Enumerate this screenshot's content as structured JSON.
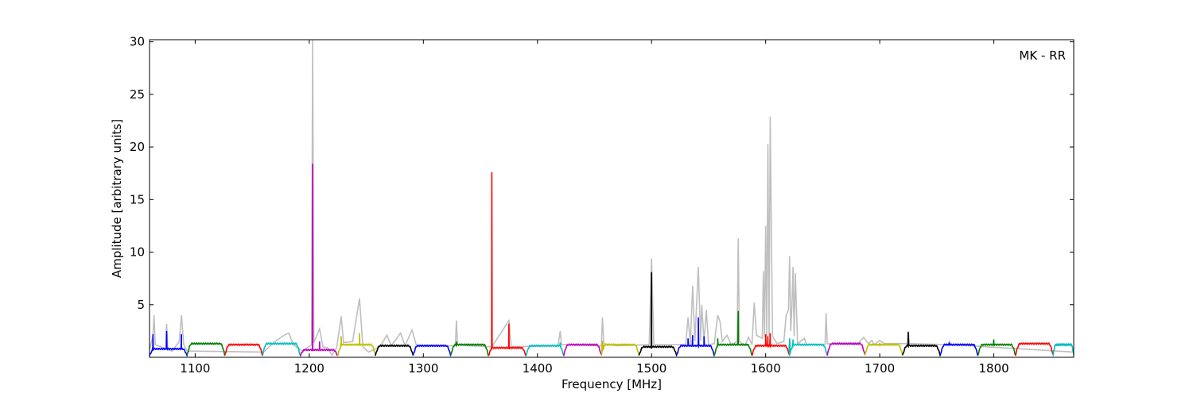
{
  "chart_data": {
    "type": "line",
    "title": "",
    "annotation": "MK - RR",
    "xlabel": "Frequency [MHz]",
    "ylabel": "Amplitude [arbitrary units]",
    "xlim": [
      1060,
      1870
    ],
    "ylim": [
      0,
      30.2
    ],
    "xticks": [
      1100,
      1200,
      1300,
      1400,
      1500,
      1600,
      1700,
      1800
    ],
    "yticks": [
      5,
      10,
      15,
      20,
      25,
      30
    ],
    "grid": false,
    "background_series": {
      "color": "#bfbfbf",
      "points": [
        [
          1060,
          0.7
        ],
        [
          1063,
          2.0
        ],
        [
          1064,
          4.0
        ],
        [
          1065,
          1.2
        ],
        [
          1070,
          1.0
        ],
        [
          1074,
          0.8
        ],
        [
          1075,
          3.2
        ],
        [
          1076,
          0.7
        ],
        [
          1080,
          0.6
        ],
        [
          1086,
          1.5
        ],
        [
          1088,
          4.0
        ],
        [
          1090,
          1.2
        ],
        [
          1093,
          0.6
        ],
        [
          1160,
          0.5
        ],
        [
          1170,
          1.5
        ],
        [
          1178,
          2.1
        ],
        [
          1182,
          2.3
        ],
        [
          1186,
          1.2
        ],
        [
          1194,
          0.6
        ],
        [
          1202,
          1.2
        ],
        [
          1203,
          30.2
        ],
        [
          1204,
          1.4
        ],
        [
          1209,
          2.7
        ],
        [
          1212,
          1.0
        ],
        [
          1216,
          0.9
        ],
        [
          1220,
          0.2
        ],
        [
          1224,
          0.9
        ],
        [
          1228,
          3.9
        ],
        [
          1230,
          1.4
        ],
        [
          1238,
          1.5
        ],
        [
          1244,
          5.6
        ],
        [
          1247,
          1.0
        ],
        [
          1252,
          0.5
        ],
        [
          1262,
          1.0
        ],
        [
          1268,
          2.1
        ],
        [
          1272,
          1.1
        ],
        [
          1280,
          2.3
        ],
        [
          1284,
          1.1
        ],
        [
          1290,
          2.6
        ],
        [
          1294,
          1.1
        ],
        [
          1300,
          1.1
        ],
        [
          1328,
          1.1
        ],
        [
          1329,
          3.5
        ],
        [
          1330,
          1.2
        ],
        [
          1340,
          1.1
        ],
        [
          1360,
          1.0
        ],
        [
          1375,
          3.5
        ],
        [
          1377,
          1.0
        ],
        [
          1418,
          1.1
        ],
        [
          1420,
          2.5
        ],
        [
          1421,
          1.2
        ],
        [
          1456,
          1.1
        ],
        [
          1457,
          3.8
        ],
        [
          1458,
          1.3
        ],
        [
          1470,
          1.1
        ],
        [
          1498,
          1.2
        ],
        [
          1500,
          9.4
        ],
        [
          1502,
          1.2
        ],
        [
          1520,
          1.2
        ],
        [
          1530,
          1.2
        ],
        [
          1532,
          3.8
        ],
        [
          1534,
          1.3
        ],
        [
          1536,
          6.8
        ],
        [
          1538,
          1.5
        ],
        [
          1541,
          8.6
        ],
        [
          1543,
          1.6
        ],
        [
          1544,
          5.0
        ],
        [
          1546,
          1.5
        ],
        [
          1548,
          4.5
        ],
        [
          1550,
          1.2
        ],
        [
          1555,
          1.3
        ],
        [
          1558,
          4.0
        ],
        [
          1560,
          3.4
        ],
        [
          1562,
          1.5
        ],
        [
          1566,
          2.1
        ],
        [
          1570,
          1.2
        ],
        [
          1575,
          1.5
        ],
        [
          1576,
          11.3
        ],
        [
          1577,
          1.5
        ],
        [
          1582,
          1.1
        ],
        [
          1585,
          1.9
        ],
        [
          1588,
          1.2
        ],
        [
          1590,
          5.2
        ],
        [
          1592,
          2.1
        ],
        [
          1597,
          1.8
        ],
        [
          1598,
          8.2
        ],
        [
          1599,
          1.9
        ],
        [
          1600,
          12.5
        ],
        [
          1601,
          1.9
        ],
        [
          1602,
          20.3
        ],
        [
          1603,
          2.0
        ],
        [
          1604,
          22.9
        ],
        [
          1606,
          2.0
        ],
        [
          1610,
          1.3
        ],
        [
          1616,
          1.5
        ],
        [
          1618,
          4.0
        ],
        [
          1620,
          4.5
        ],
        [
          1621,
          9.6
        ],
        [
          1622,
          2.5
        ],
        [
          1623,
          4.8
        ],
        [
          1624,
          8.6
        ],
        [
          1625,
          2.0
        ],
        [
          1626,
          8.0
        ],
        [
          1628,
          1.3
        ],
        [
          1634,
          1.8
        ],
        [
          1636,
          1.2
        ],
        [
          1652,
          1.2
        ],
        [
          1653,
          4.2
        ],
        [
          1654,
          1.3
        ],
        [
          1680,
          1.2
        ],
        [
          1686,
          1.9
        ],
        [
          1690,
          1.3
        ],
        [
          1693,
          1.6
        ],
        [
          1695,
          1.2
        ],
        [
          1700,
          1.6
        ],
        [
          1704,
          1.3
        ],
        [
          1724,
          1.3
        ],
        [
          1725,
          2.5
        ],
        [
          1726,
          1.3
        ],
        [
          1760,
          1.2
        ],
        [
          1761,
          1.5
        ],
        [
          1762,
          1.2
        ],
        [
          1870,
          0.5
        ]
      ]
    },
    "series": [
      {
        "color": "#0000ff",
        "x_range": [
          1060,
          1093
        ],
        "base": 0.8,
        "spikes": [
          [
            1063,
            2.2
          ],
          [
            1075,
            2.5
          ],
          [
            1088,
            2.2
          ]
        ],
        "dip_start": false
      },
      {
        "color": "#008000",
        "x_range": [
          1093,
          1126
        ],
        "base": 1.3,
        "spikes": []
      },
      {
        "color": "#ff0000",
        "x_range": [
          1126,
          1159
        ],
        "base": 1.2,
        "spikes": []
      },
      {
        "color": "#00bfbf",
        "x_range": [
          1159,
          1192
        ],
        "base": 1.3,
        "spikes": []
      },
      {
        "color": "#bf00bf",
        "x_range": [
          1192,
          1225
        ],
        "base": 0.7,
        "spikes": [
          [
            1203,
            18.4
          ],
          [
            1209,
            1.5
          ]
        ]
      },
      {
        "color": "#bfbf00",
        "x_range": [
          1225,
          1258
        ],
        "base": 1.2,
        "spikes": [
          [
            1228,
            2.0
          ],
          [
            1244,
            2.3
          ]
        ]
      },
      {
        "color": "#000000",
        "x_range": [
          1258,
          1291
        ],
        "base": 1.1,
        "spikes": []
      },
      {
        "color": "#0000ff",
        "x_range": [
          1291,
          1324
        ],
        "base": 1.1,
        "spikes": []
      },
      {
        "color": "#008000",
        "x_range": [
          1324,
          1357
        ],
        "base": 1.2,
        "spikes": [
          [
            1329,
            1.5
          ]
        ]
      },
      {
        "color": "#ff0000",
        "x_range": [
          1357,
          1390
        ],
        "base": 0.9,
        "spikes": [
          [
            1360,
            17.6
          ],
          [
            1375,
            3.2
          ]
        ]
      },
      {
        "color": "#00bfbf",
        "x_range": [
          1390,
          1423
        ],
        "base": 1.1,
        "spikes": [
          [
            1420,
            1.4
          ]
        ]
      },
      {
        "color": "#bf00bf",
        "x_range": [
          1423,
          1456
        ],
        "base": 1.2,
        "spikes": []
      },
      {
        "color": "#bfbf00",
        "x_range": [
          1456,
          1489
        ],
        "base": 1.2,
        "spikes": [
          [
            1457,
            1.6
          ]
        ]
      },
      {
        "color": "#000000",
        "x_range": [
          1489,
          1522
        ],
        "base": 1.0,
        "spikes": [
          [
            1500,
            8.1
          ]
        ]
      },
      {
        "color": "#0000ff",
        "x_range": [
          1522,
          1555
        ],
        "base": 1.1,
        "spikes": [
          [
            1532,
            1.8
          ],
          [
            1536,
            2.1
          ],
          [
            1541,
            3.8
          ],
          [
            1546,
            2.0
          ]
        ]
      },
      {
        "color": "#008000",
        "x_range": [
          1555,
          1588
        ],
        "base": 1.2,
        "spikes": [
          [
            1558,
            1.8
          ],
          [
            1576,
            4.4
          ]
        ]
      },
      {
        "color": "#ff0000",
        "x_range": [
          1588,
          1621
        ],
        "base": 1.1,
        "spikes": [
          [
            1600,
            2.2
          ],
          [
            1602,
            2.0
          ],
          [
            1604,
            2.3
          ]
        ]
      },
      {
        "color": "#00bfbf",
        "x_range": [
          1621,
          1654
        ],
        "base": 1.2,
        "spikes": [
          [
            1621,
            1.8
          ],
          [
            1624,
            1.7
          ]
        ]
      },
      {
        "color": "#bf00bf",
        "x_range": [
          1654,
          1687
        ],
        "base": 1.3,
        "spikes": []
      },
      {
        "color": "#bfbf00",
        "x_range": [
          1687,
          1720
        ],
        "base": 1.2,
        "spikes": [
          [
            1700,
            1.3
          ]
        ]
      },
      {
        "color": "#000000",
        "x_range": [
          1720,
          1753
        ],
        "base": 1.1,
        "spikes": [
          [
            1725,
            2.4
          ]
        ]
      },
      {
        "color": "#0000ff",
        "x_range": [
          1753,
          1786
        ],
        "base": 1.2,
        "spikes": [
          [
            1761,
            1.4
          ]
        ]
      },
      {
        "color": "#008000",
        "x_range": [
          1786,
          1819
        ],
        "base": 1.2,
        "spikes": [
          [
            1800,
            1.7
          ]
        ]
      },
      {
        "color": "#ff0000",
        "x_range": [
          1819,
          1852
        ],
        "base": 1.3,
        "spikes": []
      },
      {
        "color": "#00bfbf",
        "x_range": [
          1852,
          1870
        ],
        "base": 1.2,
        "spikes": []
      }
    ]
  }
}
